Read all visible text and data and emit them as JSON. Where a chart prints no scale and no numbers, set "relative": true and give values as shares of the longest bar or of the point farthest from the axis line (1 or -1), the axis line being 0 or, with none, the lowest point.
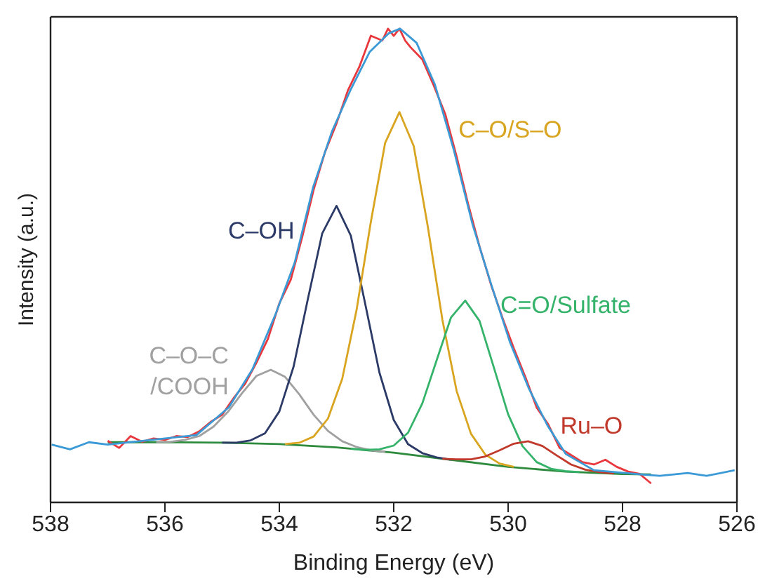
{
  "chart_data": {
    "type": "line",
    "xlabel": "Binding Energy (eV)",
    "ylabel": "Intensity (a.u.)",
    "relative": true,
    "xlim": [
      538,
      526
    ],
    "xticks": [
      538,
      536,
      534,
      532,
      530,
      528,
      526
    ],
    "marker": "none",
    "line_style": "solid",
    "series": [
      {
        "color": "#2e8b3e",
        "x": [
          537,
          536,
          535,
          534,
          533,
          532,
          531,
          530,
          529,
          528,
          527.5
        ],
        "values": [
          0.127,
          0.127,
          0.126,
          0.123,
          0.116,
          0.105,
          0.09,
          0.075,
          0.065,
          0.06,
          0.059
        ]
      },
      {
        "name": "C–O–C /COOH",
        "color": "#a0a0a0",
        "x": [
          536.15,
          535.9,
          535.65,
          535.4,
          535.15,
          534.9,
          534.65,
          534.4,
          534.15,
          533.9,
          533.65,
          533.4,
          533.15,
          532.9,
          532.65,
          532.4,
          532.15
        ],
        "values": [
          0.127,
          0.128,
          0.132,
          0.14,
          0.16,
          0.191,
          0.231,
          0.267,
          0.28,
          0.265,
          0.228,
          0.185,
          0.151,
          0.129,
          0.117,
          0.11,
          0.107
        ]
      },
      {
        "name": "C–OH",
        "color": "#2b3a67",
        "x": [
          535,
          534.75,
          534.5,
          534.25,
          534,
          533.75,
          533.5,
          533.25,
          533,
          532.75,
          532.5,
          532.25,
          532,
          531.75,
          531.5,
          531.25,
          531
        ],
        "values": [
          0.126,
          0.126,
          0.131,
          0.146,
          0.192,
          0.287,
          0.43,
          0.568,
          0.626,
          0.563,
          0.42,
          0.274,
          0.174,
          0.123,
          0.104,
          0.095,
          0.09
        ]
      },
      {
        "name": "C–O/S–O",
        "color": "#d9a520",
        "x": [
          533.9,
          533.65,
          533.4,
          533.15,
          532.9,
          532.65,
          532.4,
          532.15,
          531.9,
          531.65,
          531.4,
          531.15,
          530.9,
          530.65,
          530.4,
          530.15,
          529.9
        ],
        "values": [
          0.123,
          0.126,
          0.139,
          0.177,
          0.261,
          0.406,
          0.592,
          0.759,
          0.824,
          0.752,
          0.579,
          0.386,
          0.235,
          0.145,
          0.101,
          0.082,
          0.075
        ]
      },
      {
        "name": "C=O/Sulfate",
        "color": "#35b36a",
        "x": [
          532.75,
          532.5,
          532.25,
          532,
          531.75,
          531.5,
          531.25,
          531,
          530.75,
          530.5,
          530.25,
          530,
          529.75,
          529.5,
          529.25,
          529,
          528.75
        ],
        "values": [
          0.113,
          0.111,
          0.112,
          0.12,
          0.147,
          0.209,
          0.3,
          0.39,
          0.426,
          0.383,
          0.285,
          0.186,
          0.119,
          0.085,
          0.071,
          0.066,
          0.064
        ]
      },
      {
        "name": "Ru–O",
        "color": "#c0392b",
        "x": [
          531.15,
          530.9,
          530.65,
          530.4,
          530.15,
          529.9,
          529.65,
          529.4,
          529.15,
          528.9,
          528.65,
          528.4,
          528.15
        ],
        "values": [
          0.092,
          0.091,
          0.091,
          0.097,
          0.11,
          0.124,
          0.129,
          0.119,
          0.099,
          0.08,
          0.069,
          0.064,
          0.061
        ]
      },
      {
        "color": "#e8383d",
        "x": [
          537,
          536.8,
          536.6,
          536.4,
          536.2,
          536,
          535.8,
          535.6,
          535.4,
          535.2,
          535,
          534.8,
          534.6,
          534.4,
          534.2,
          534,
          533.8,
          533.6,
          533.4,
          533.2,
          533,
          532.8,
          532.6,
          532.4,
          532.2,
          532.1,
          532,
          531.9,
          531.8,
          531.7,
          531.5,
          531.3,
          531.1,
          530.9,
          530.7,
          530.5,
          530.3,
          530.1,
          529.9,
          529.7,
          529.5,
          529.3,
          529.1,
          528.9,
          528.7,
          528.5,
          528.3,
          528.1,
          527.9,
          527.7,
          527.5
        ],
        "values": [
          0.13,
          0.115,
          0.14,
          0.128,
          0.135,
          0.132,
          0.14,
          0.138,
          0.15,
          0.17,
          0.185,
          0.22,
          0.25,
          0.295,
          0.345,
          0.42,
          0.47,
          0.56,
          0.66,
          0.74,
          0.8,
          0.87,
          0.92,
          0.985,
          0.975,
          1,
          0.985,
          1,
          0.975,
          0.96,
          0.935,
          0.88,
          0.82,
          0.73,
          0.63,
          0.54,
          0.46,
          0.39,
          0.325,
          0.265,
          0.2,
          0.165,
          0.115,
          0.1,
          0.085,
          0.08,
          0.09,
          0.075,
          0.065,
          0.06,
          0.04
        ]
      },
      {
        "color": "#3b9ad6",
        "x": [
          537.98,
          537.66,
          537.33,
          537,
          535.45,
          534.88,
          534.47,
          534.06,
          533.73,
          533.41,
          533.08,
          532.75,
          532.42,
          532.09,
          531.89,
          531.6,
          531.28,
          530.95,
          530.62,
          530.29,
          529.97,
          529.64,
          529.31,
          528.99,
          528.5,
          527.68,
          527.35,
          526.86,
          526.53,
          526.04
        ],
        "values": [
          0.122,
          0.112,
          0.127,
          0.122,
          0.142,
          0.201,
          0.281,
          0.399,
          0.507,
          0.665,
          0.783,
          0.872,
          0.951,
          0.99,
          1,
          0.97,
          0.882,
          0.744,
          0.586,
          0.458,
          0.339,
          0.241,
          0.162,
          0.102,
          0.068,
          0.059,
          0.056,
          0.062,
          0.056,
          0.068
        ]
      }
    ]
  }
}
